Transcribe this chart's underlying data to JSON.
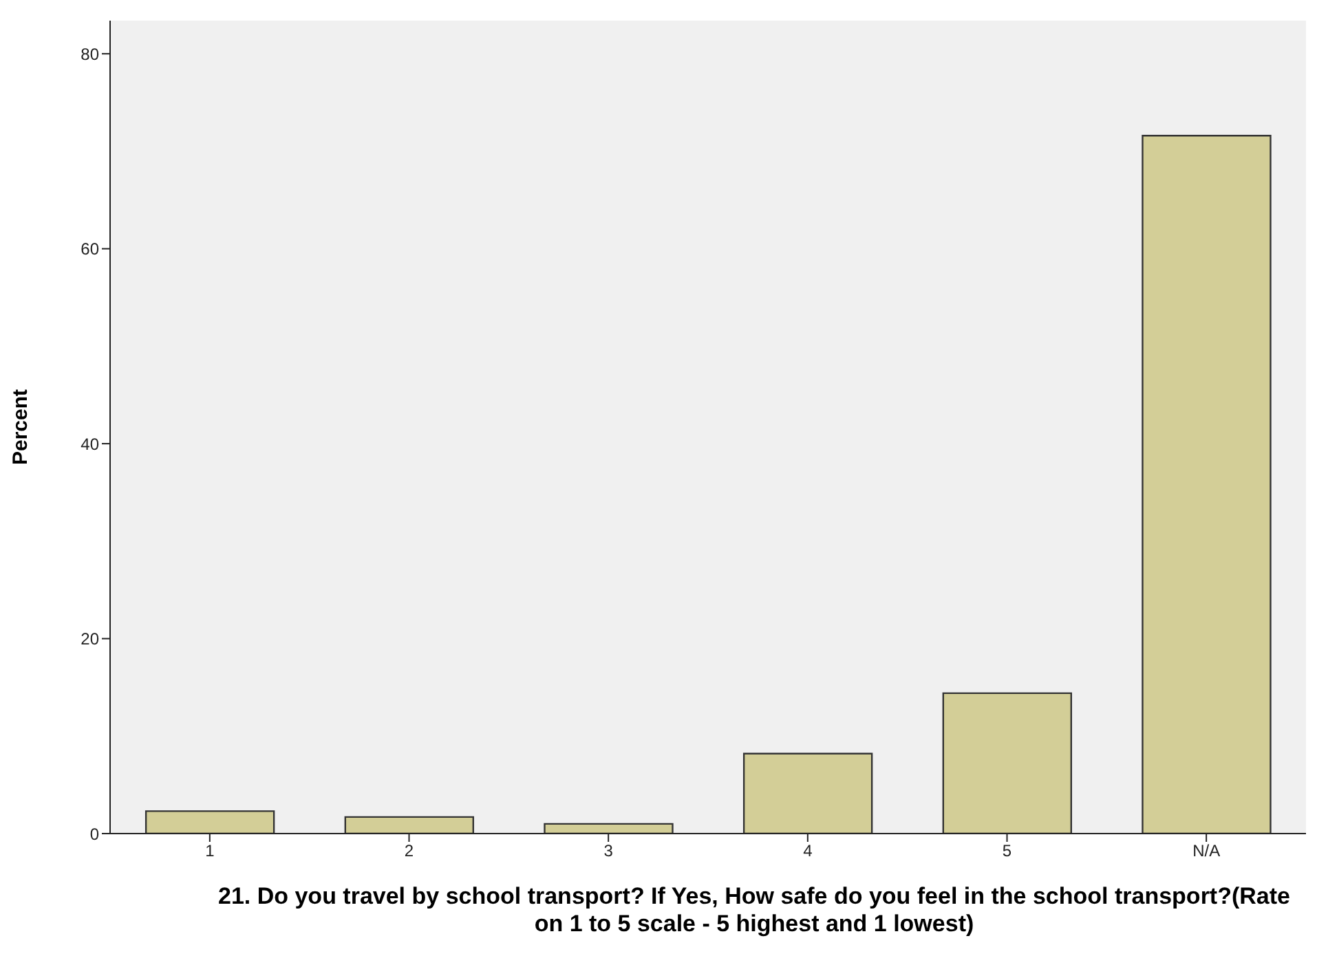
{
  "chart_data": {
    "type": "bar",
    "categories": [
      "1",
      "2",
      "3",
      "4",
      "5",
      "N/A"
    ],
    "values": [
      2.3,
      1.7,
      1.0,
      8.2,
      14.4,
      71.6
    ],
    "color": "#d3ce97",
    "ylabel": "Percent",
    "xlabel": "21. Do you travel by school transport? If Yes, How safe do you feel in the school transport?(Rate on 1 to 5 scale - 5 highest and 1 lowest)",
    "ylim": [
      0,
      83.4
    ],
    "yticks": [
      0,
      20,
      40,
      60,
      80
    ],
    "grid": false
  }
}
